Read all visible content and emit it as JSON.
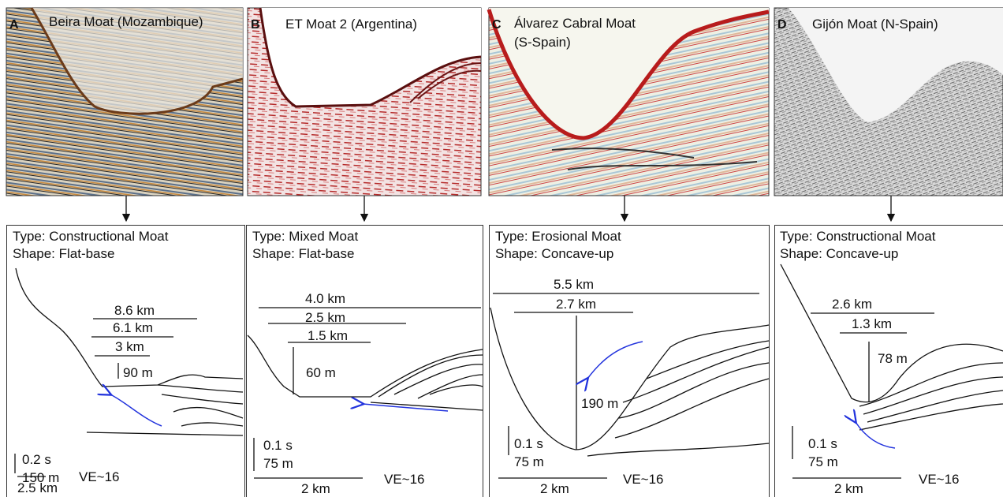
{
  "panels": [
    {
      "letter": "A",
      "title_lines": [
        "Beira Moat (Mozambique)"
      ],
      "type": "Type: Constructional Moat",
      "shape": "Shape: Flat-base",
      "widths": [
        "8.6 km",
        "6.1 km",
        "3 km"
      ],
      "depth": "90 m",
      "scale_time": "0.2 s",
      "scale_depth": "150 m",
      "scale_length": "2.5 km",
      "ve": "VE~16"
    },
    {
      "letter": "B",
      "title_lines": [
        "ET Moat 2 (Argentina)"
      ],
      "type": "Type: Mixed Moat",
      "shape": "Shape: Flat-base",
      "widths": [
        "4.0 km",
        "2.5 km",
        "1.5 km"
      ],
      "depth": "60 m",
      "scale_time": "0.1 s",
      "scale_depth": "75 m",
      "scale_length": "2 km",
      "ve": "VE~16"
    },
    {
      "letter": "C",
      "title_lines": [
        "Álvarez Cabral Moat",
        "(S-Spain)"
      ],
      "type": "Type: Erosional Moat",
      "shape": "Shape: Concave-up",
      "widths": [
        "5.5 km",
        "2.7 km"
      ],
      "depth": "190 m",
      "scale_time": "0.1 s",
      "scale_depth": "75 m",
      "scale_length": "2 km",
      "ve": "VE~16"
    },
    {
      "letter": "D",
      "title_lines": [
        "Gijón Moat  (N-Spain)"
      ],
      "type": "Type: Constructional Moat",
      "shape": "Shape: Concave-up",
      "widths": [
        "2.6 km",
        "1.3 km"
      ],
      "depth": "78 m",
      "scale_time": "0.1 s",
      "scale_depth": "75 m",
      "scale_length": "2 km",
      "ve": "VE~16"
    }
  ]
}
